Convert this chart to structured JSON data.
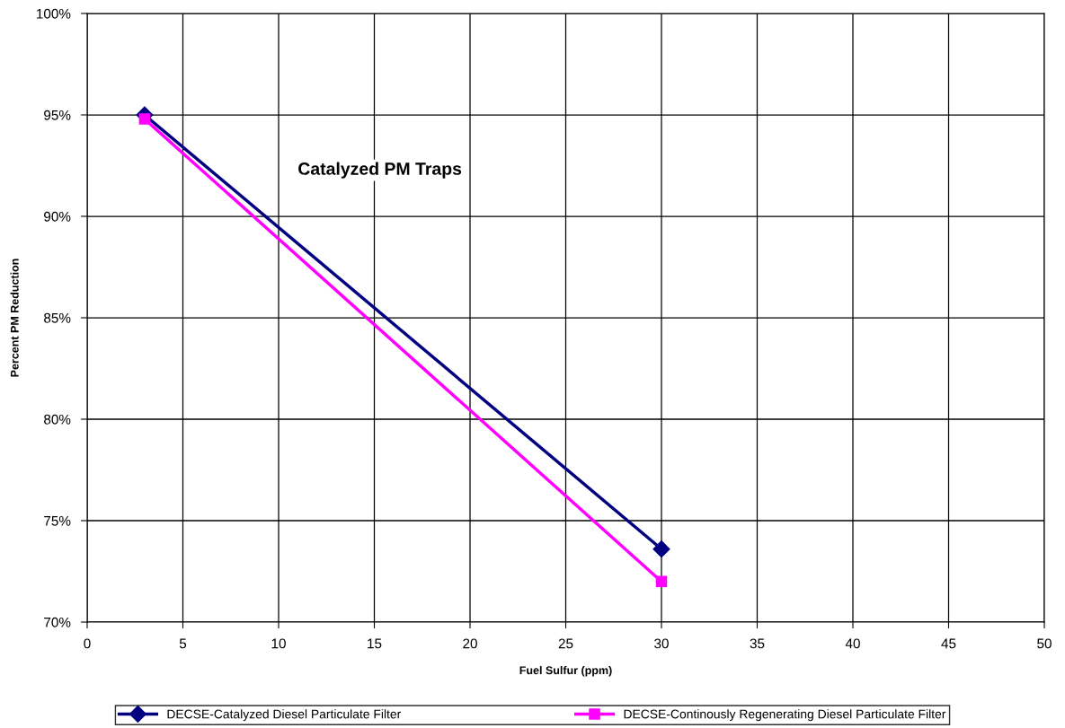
{
  "chart_data": {
    "type": "line",
    "xlabel": "Fuel Sulfur (ppm)",
    "ylabel": "Percent PM Reduction",
    "annotations": [
      "Catalyzed PM Traps"
    ],
    "x": [
      3,
      30
    ],
    "series": [
      {
        "name": "DECSE-Catalyzed Diesel Particulate Filter",
        "color": "#000080",
        "values": [
          95.0,
          73.6
        ],
        "marker": "diamond"
      },
      {
        "name": "DECSE-Continously Regenerating Diesel Particulate Filter",
        "color": "#ff00ff",
        "values": [
          94.8,
          72.0
        ],
        "marker": "square"
      }
    ],
    "xlim": [
      0,
      50
    ],
    "xticks": [
      0,
      5,
      10,
      15,
      20,
      25,
      30,
      35,
      40,
      45,
      50
    ],
    "ylim": [
      70,
      100
    ],
    "yticks": [
      {
        "value": 70,
        "label": "70%"
      },
      {
        "value": 75,
        "label": "75%"
      },
      {
        "value": 80,
        "label": "80%"
      },
      {
        "value": 85,
        "label": "85%"
      },
      {
        "value": 90,
        "label": "90%"
      },
      {
        "value": 95,
        "label": "95%"
      },
      {
        "value": 100,
        "label": "100%"
      }
    ],
    "grid": true,
    "legend": "bottom",
    "line_style": "solid"
  }
}
